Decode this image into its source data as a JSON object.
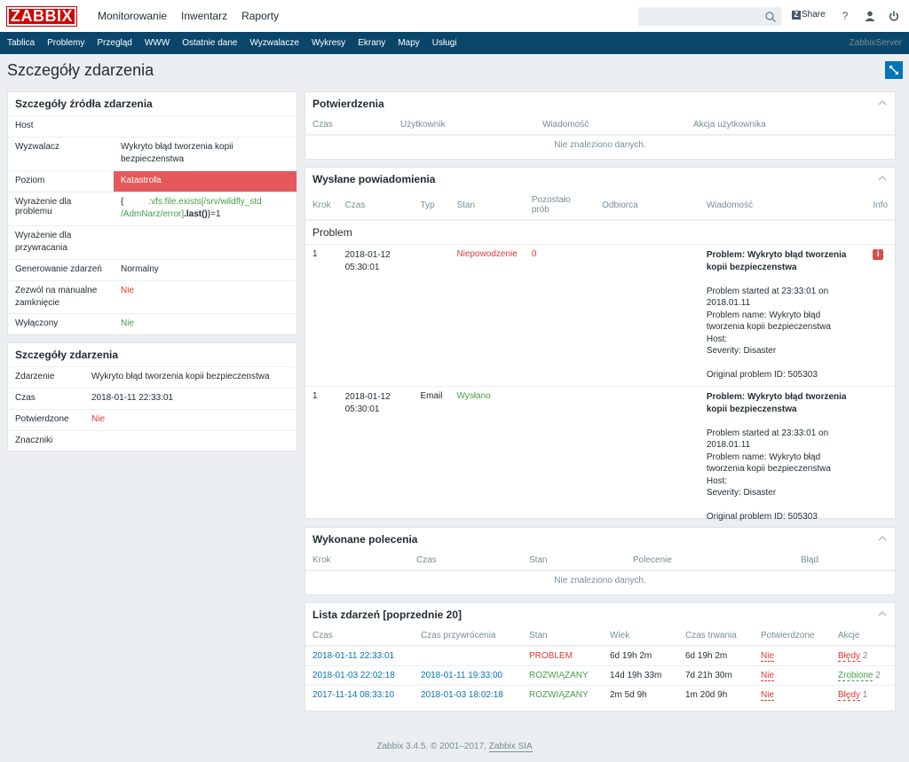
{
  "header": {
    "logo": "ZABBIX",
    "menu": [
      "Monitorowanie",
      "Inwentarz",
      "Raporty"
    ],
    "share": "Share",
    "help": "?"
  },
  "subnav": {
    "items": [
      "Tablica",
      "Problemy",
      "Przegląd",
      "WWW",
      "Ostatnie dane",
      "Wyzwalacze",
      "Wykresy",
      "Ekrany",
      "Mapy",
      "Usługi"
    ],
    "server": "ZabbixServer"
  },
  "page_title": "Szczegóły zdarzenia",
  "source_panel": {
    "title": "Szczegóły źródła zdarzenia",
    "host_label": "Host",
    "trigger_label": "Wyzwalacz",
    "trigger_value": "Wykryto błąd tworzenia kopii bezpieczenstwa",
    "severity_label": "Poziom",
    "severity_value": "Katastrofa",
    "problem_expr_label": "Wyrażenie dla problemu",
    "problem_expr_open": "{",
    "problem_expr_key": ":vfs.file.exists[/srv/wildfly_std /AdmNarz/error]",
    "problem_expr_func": ".last()",
    "problem_expr_rest": "}=1",
    "recovery_expr_label": "Wyrażenie dla przywracania",
    "event_gen_label": "Generowanie zdarzeń",
    "event_gen_value": "Normalny",
    "manual_close_label": "Zezwól na manualne zamknięcie",
    "manual_close_value": "Nie",
    "disabled_label": "Wyłączony",
    "disabled_value": "Nie"
  },
  "event_panel": {
    "title": "Szczegóły zdarzenia",
    "event_label": "Zdarzenie",
    "event_value": "Wykryto błąd tworzenia kopii bezpieczenstwa",
    "time_label": "Czas",
    "time_value": "2018-01-11 22:33:01",
    "ack_label": "Potwierdzone",
    "ack_value": "Nie",
    "tags_label": "Znaczniki"
  },
  "ack_panel": {
    "title": "Potwierdzenia",
    "columns": [
      "Czas",
      "Użytkownik",
      "Wiadomość",
      "Akcja użytkownika"
    ],
    "empty": "Nie znaleziono danych."
  },
  "notif_panel": {
    "title": "Wysłane powiadomienia",
    "columns": [
      "Krok",
      "Czas",
      "Typ",
      "Stan",
      "Pozostało prób",
      "Odbiorca",
      "Wiadomość",
      "Info"
    ],
    "group": "Problem",
    "rows": [
      {
        "step": "1",
        "time1": "2018-01-12",
        "time2": "05:30:01",
        "type": "",
        "status": "Niepowodzenie",
        "retries": "0",
        "recipient": "",
        "subject": "Problem: Wykryto błąd tworzenia kopii bezpieczenstwa",
        "body1": "Problem started at 23:33:01 on 2018.01.11",
        "body2": "Problem name: Wykryto błąd tworzenia kopii bezpieczenstwa",
        "body3": "Host:",
        "body4": "Severity: Disaster",
        "body5": "Original problem ID: 505303",
        "info": "i"
      },
      {
        "step": "1",
        "time1": "2018-01-12",
        "time2": "05:30:01",
        "type": "Email",
        "status": "Wysłano",
        "retries": "",
        "recipient": "",
        "subject": "Problem: Wykryto błąd tworzenia kopii bezpieczenstwa",
        "body1": "Problem started at 23:33:01 on 2018.01.11",
        "body2": "Problem name: Wykryto błąd tworzenia kopii bezpieczenstwa",
        "body3": "Host:",
        "body4": "Severity: Disaster",
        "body5": "Original problem ID: 505303",
        "info": ""
      }
    ]
  },
  "cmd_panel": {
    "title": "Wykonane polecenia",
    "columns": [
      "Krok",
      "Czas",
      "Stan",
      "Polecenie",
      "Błąd"
    ],
    "empty": "Nie znaleziono danych."
  },
  "events_panel": {
    "title": "Lista zdarzeń [poprzednie 20]",
    "columns": [
      "Czas",
      "Czas przywrócenia",
      "Stan",
      "Wiek",
      "Czas trwania",
      "Potwierdzone",
      "Akcje"
    ],
    "rows": [
      {
        "time": "2018-01-11 22:33:01",
        "recovery": "",
        "status": "PROBLEM",
        "age": "6d 19h 2m",
        "duration": "6d 19h 2m",
        "ack": "Nie",
        "action": "Błędy",
        "count": "2"
      },
      {
        "time": "2018-01-03 22:02:18",
        "recovery": "2018-01-11 19:33:00",
        "status": "ROZWIĄZANY",
        "age": "14d 19h 33m",
        "duration": "7d 21h 30m",
        "ack": "Nie",
        "action": "Zrobione",
        "count": "2"
      },
      {
        "time": "2017-11-14 08:33:10",
        "recovery": "2018-01-03 18:02:18",
        "status": "ROZWIĄZANY",
        "age": "2m 5d 9h",
        "duration": "1m 20d 9h",
        "ack": "Nie",
        "action": "Błędy",
        "count": "1"
      }
    ]
  },
  "footer": {
    "text": "Zabbix 3.4.5. © 2001–2017, ",
    "link": "Zabbix SIA"
  },
  "colors": {
    "nav_bar": "#0a466a",
    "logo": "#d40000",
    "disaster": "#e45959",
    "link": "#0275b8"
  }
}
